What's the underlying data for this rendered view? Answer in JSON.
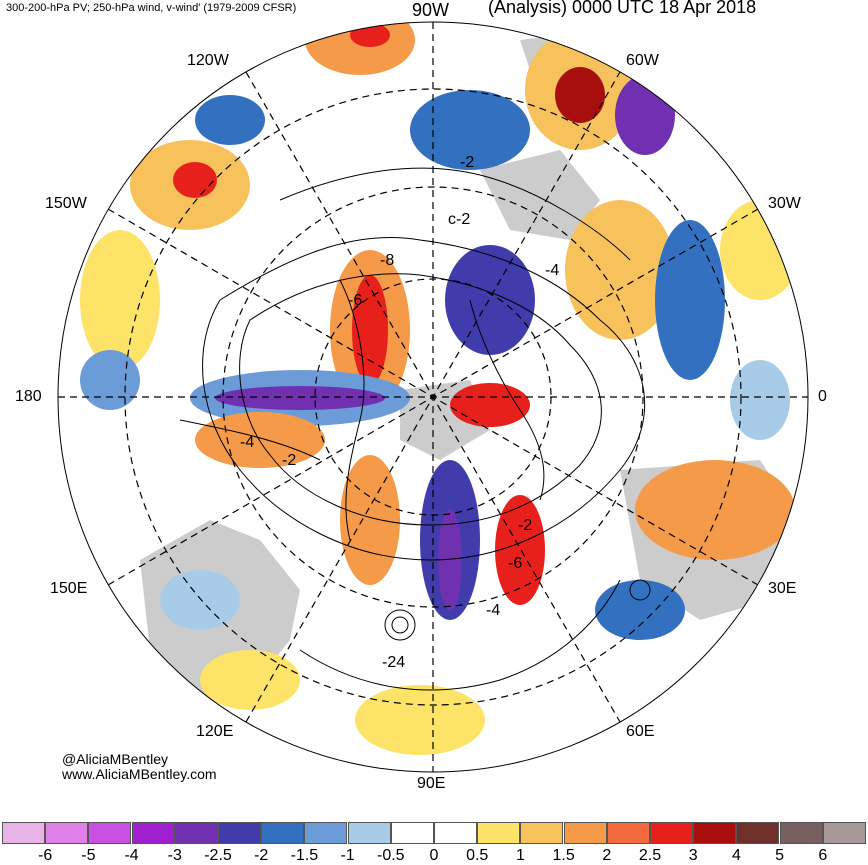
{
  "header": {
    "left_title": "300-200-hPa PV; 250-hPa wind, v-wind' (1979-2009 CFSR)",
    "right_title": "(Analysis) 0000 UTC 18 Apr 2018"
  },
  "longitude_labels": {
    "w90": "90W",
    "w120": "120W",
    "w60": "60W",
    "w150": "150W",
    "w30": "30W",
    "lon180": "180",
    "lon0": "0",
    "e150": "150E",
    "e30": "30E",
    "e120": "120E",
    "e60": "60E",
    "e90": "90E"
  },
  "contour_labels": [
    "-2",
    "c-2",
    "-8",
    "-6",
    "-4",
    "-4",
    "-2",
    "-2",
    "-6",
    "-4",
    "-24"
  ],
  "credits": {
    "twitter": "@AliciaMBentley",
    "website": "www.AliciaMBentley.com"
  },
  "colorbar": {
    "colors": [
      "#e8b4e8",
      "#e080e8",
      "#c850e0",
      "#a020d0",
      "#7030b0",
      "#403cac",
      "#3470c0",
      "#6c9cd8",
      "#a8cce8",
      "#ffffff",
      "#ffffff",
      "#fde468",
      "#f7c25c",
      "#f59a48",
      "#f26a3e",
      "#e8201c",
      "#a80e0e",
      "#70302a",
      "#786060",
      "#a89898"
    ],
    "ticks": [
      "-6",
      "-5",
      "-4",
      "-3",
      "-2.5",
      "-2",
      "-1.5",
      "-1",
      "-0.5",
      "0",
      "0.5",
      "1",
      "1.5",
      "2",
      "2.5",
      "3",
      "4",
      "5",
      "6"
    ]
  },
  "colors": {
    "land": "#cccccc",
    "outline": "#000000"
  }
}
